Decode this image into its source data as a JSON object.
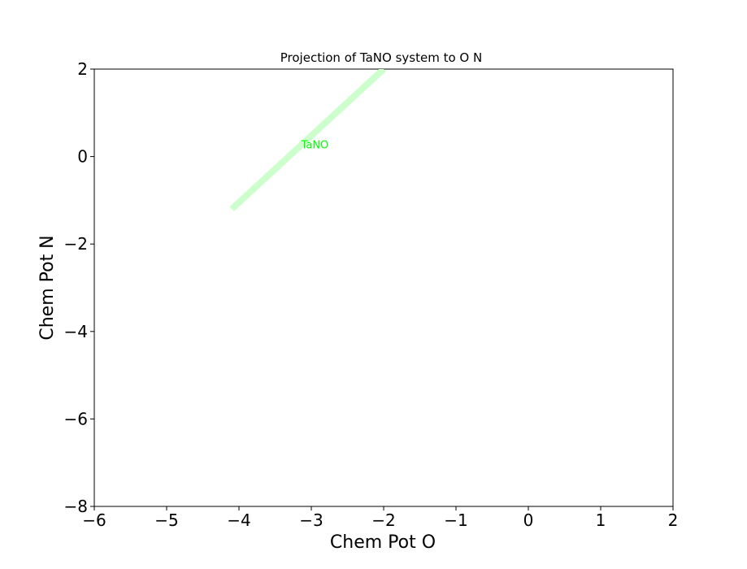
{
  "chart_data": {
    "type": "line",
    "title": "Projection of TaNO system to O N",
    "xlabel": "Chem Pot O",
    "ylabel": "Chem Pot N",
    "xlim": [
      -6,
      2
    ],
    "ylim": [
      -8,
      2
    ],
    "xticks": [
      -6,
      -5,
      -4,
      -3,
      -2,
      -1,
      0,
      1,
      2
    ],
    "yticks": [
      -8,
      -6,
      -4,
      -2,
      0,
      2
    ],
    "xtick_labels": [
      "−6",
      "−5",
      "−4",
      "−3",
      "−2",
      "−1",
      "0",
      "1",
      "2"
    ],
    "ytick_labels": [
      "−8",
      "−6",
      "−4",
      "−2",
      "0",
      "2"
    ],
    "grid": false,
    "series": [
      {
        "color": "#ccffcc",
        "x": [
          -4.1,
          -2.0
        ],
        "y": [
          -1.2,
          2.0
        ]
      }
    ],
    "annotations": [
      {
        "text": "TaNO",
        "x": -2.95,
        "y": 0.25,
        "color": "#00ff00"
      }
    ]
  }
}
